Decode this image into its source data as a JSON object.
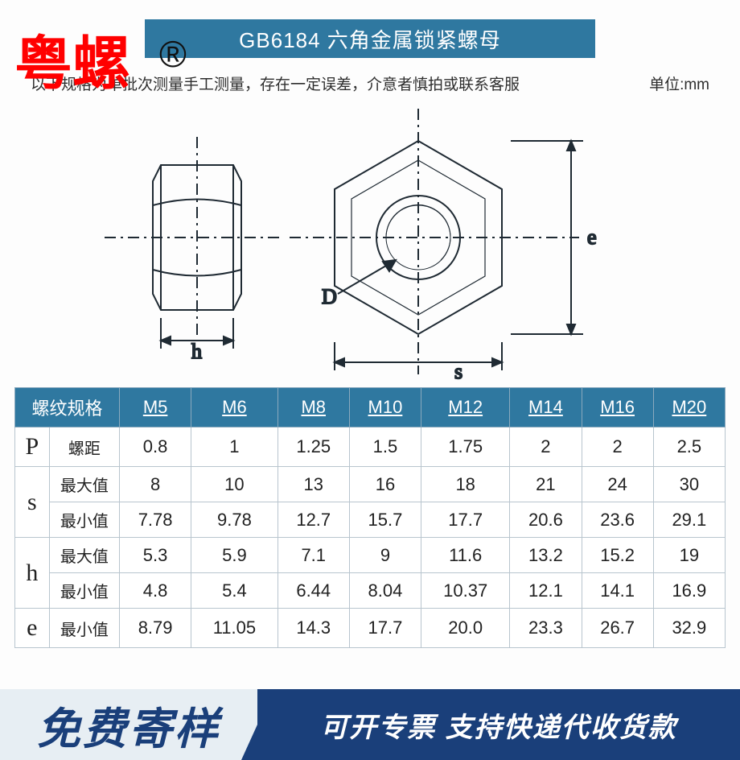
{
  "brand": {
    "text": "粤螺",
    "reg": "®",
    "color": "#ff0000"
  },
  "title": "GB6184 六角金属锁紧螺母",
  "note": "以下规格为单批次测量手工测量，存在一定误差，介意者慎拍或联系客服",
  "unit": "单位:mm",
  "diagram": {
    "labels": {
      "h": "h",
      "D": "D",
      "s": "s",
      "e": "e"
    },
    "stroke": "#1f2a33",
    "ink": "#1f2a33"
  },
  "table": {
    "header_bg": "#2f78a0",
    "header_fg": "#ffffff",
    "border": "#b8c5ce",
    "row_header": "螺纹规格",
    "sizes": [
      "M5",
      "M6",
      "M8",
      "M10",
      "M12",
      "M14",
      "M16",
      "M20"
    ],
    "rows": [
      {
        "sym": "P",
        "lbl": "螺距",
        "cells": [
          "0.8",
          "1",
          "1.25",
          "1.5",
          "1.75",
          "2",
          "2",
          "2.5"
        ]
      },
      {
        "sym": "s",
        "lbl": "最大值",
        "cells": [
          "8",
          "10",
          "13",
          "16",
          "18",
          "21",
          "24",
          "30"
        ]
      },
      {
        "sym": "",
        "lbl": "最小值",
        "cells": [
          "7.78",
          "9.78",
          "12.7",
          "15.7",
          "17.7",
          "20.6",
          "23.6",
          "29.1"
        ]
      },
      {
        "sym": "h",
        "lbl": "最大值",
        "cells": [
          "5.3",
          "5.9",
          "7.1",
          "9",
          "11.6",
          "13.2",
          "15.2",
          "19"
        ]
      },
      {
        "sym": "",
        "lbl": "最小值",
        "cells": [
          "4.8",
          "5.4",
          "6.44",
          "8.04",
          "10.37",
          "12.1",
          "14.1",
          "16.9"
        ]
      },
      {
        "sym": "e",
        "lbl": "最小值",
        "cells": [
          "8.79",
          "11.05",
          "14.3",
          "17.7",
          "20.0",
          "23.3",
          "26.7",
          "32.9"
        ]
      }
    ]
  },
  "banner": {
    "left": "免费寄样",
    "right": "可开专票 支持快递代收货款",
    "left_bg": "#e7eef3",
    "left_fg": "#1a3f7a",
    "right_bg": "#1a3f7a",
    "right_fg": "#ffffff"
  }
}
